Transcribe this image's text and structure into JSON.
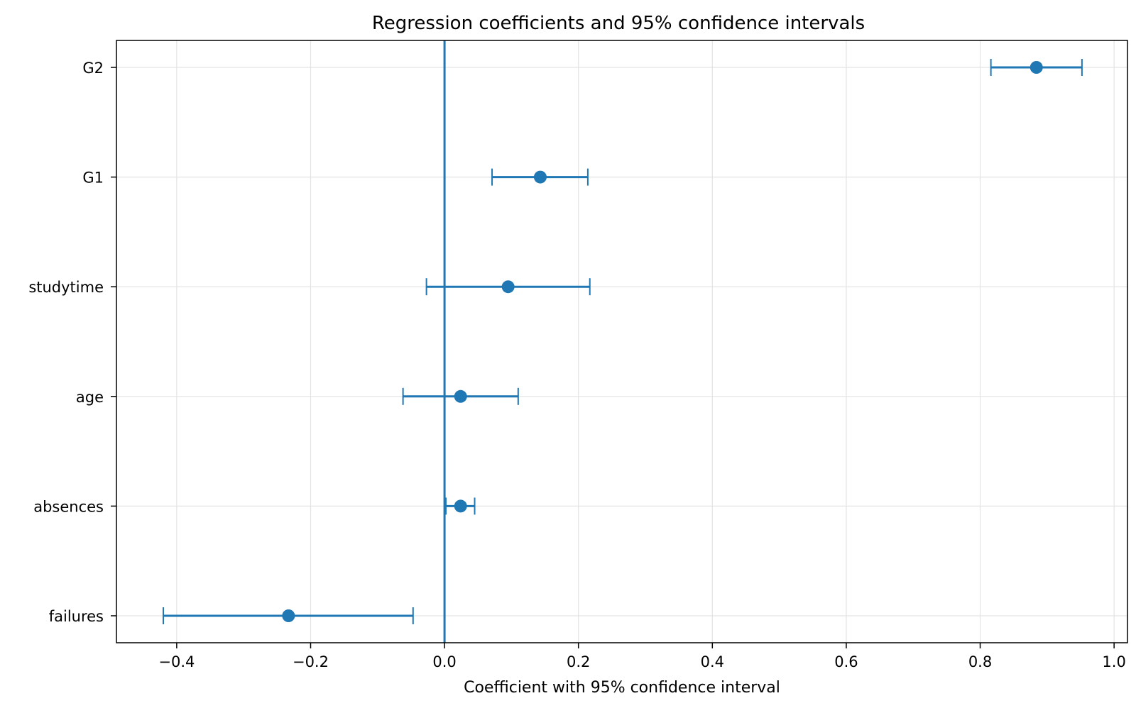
{
  "chart_data": {
    "type": "scatter",
    "variant": "coefficient-errorbar",
    "title": "Regression coefficients and 95% confidence intervals",
    "xlabel": "Coefficient with 95% confidence interval",
    "ylabel": "",
    "xlim": [
      -0.49,
      1.02
    ],
    "xticks": [
      -0.4,
      -0.2,
      0.0,
      0.2,
      0.4,
      0.6,
      0.8,
      1.0
    ],
    "xtick_labels": [
      "−0.4",
      "−0.2",
      "0.0",
      "0.2",
      "0.4",
      "0.6",
      "0.8",
      "1.0"
    ],
    "reference_line_x": 0.0,
    "grid": true,
    "color": "#1f77b4",
    "categories": [
      "failures",
      "absences",
      "age",
      "studytime",
      "G1",
      "G2"
    ],
    "estimates": [
      -0.233,
      0.024,
      0.024,
      0.095,
      0.143,
      0.884
    ],
    "ci_lower": [
      -0.42,
      0.002,
      -0.062,
      -0.027,
      0.071,
      0.816
    ],
    "ci_upper": [
      -0.047,
      0.045,
      0.11,
      0.217,
      0.214,
      0.952
    ]
  }
}
